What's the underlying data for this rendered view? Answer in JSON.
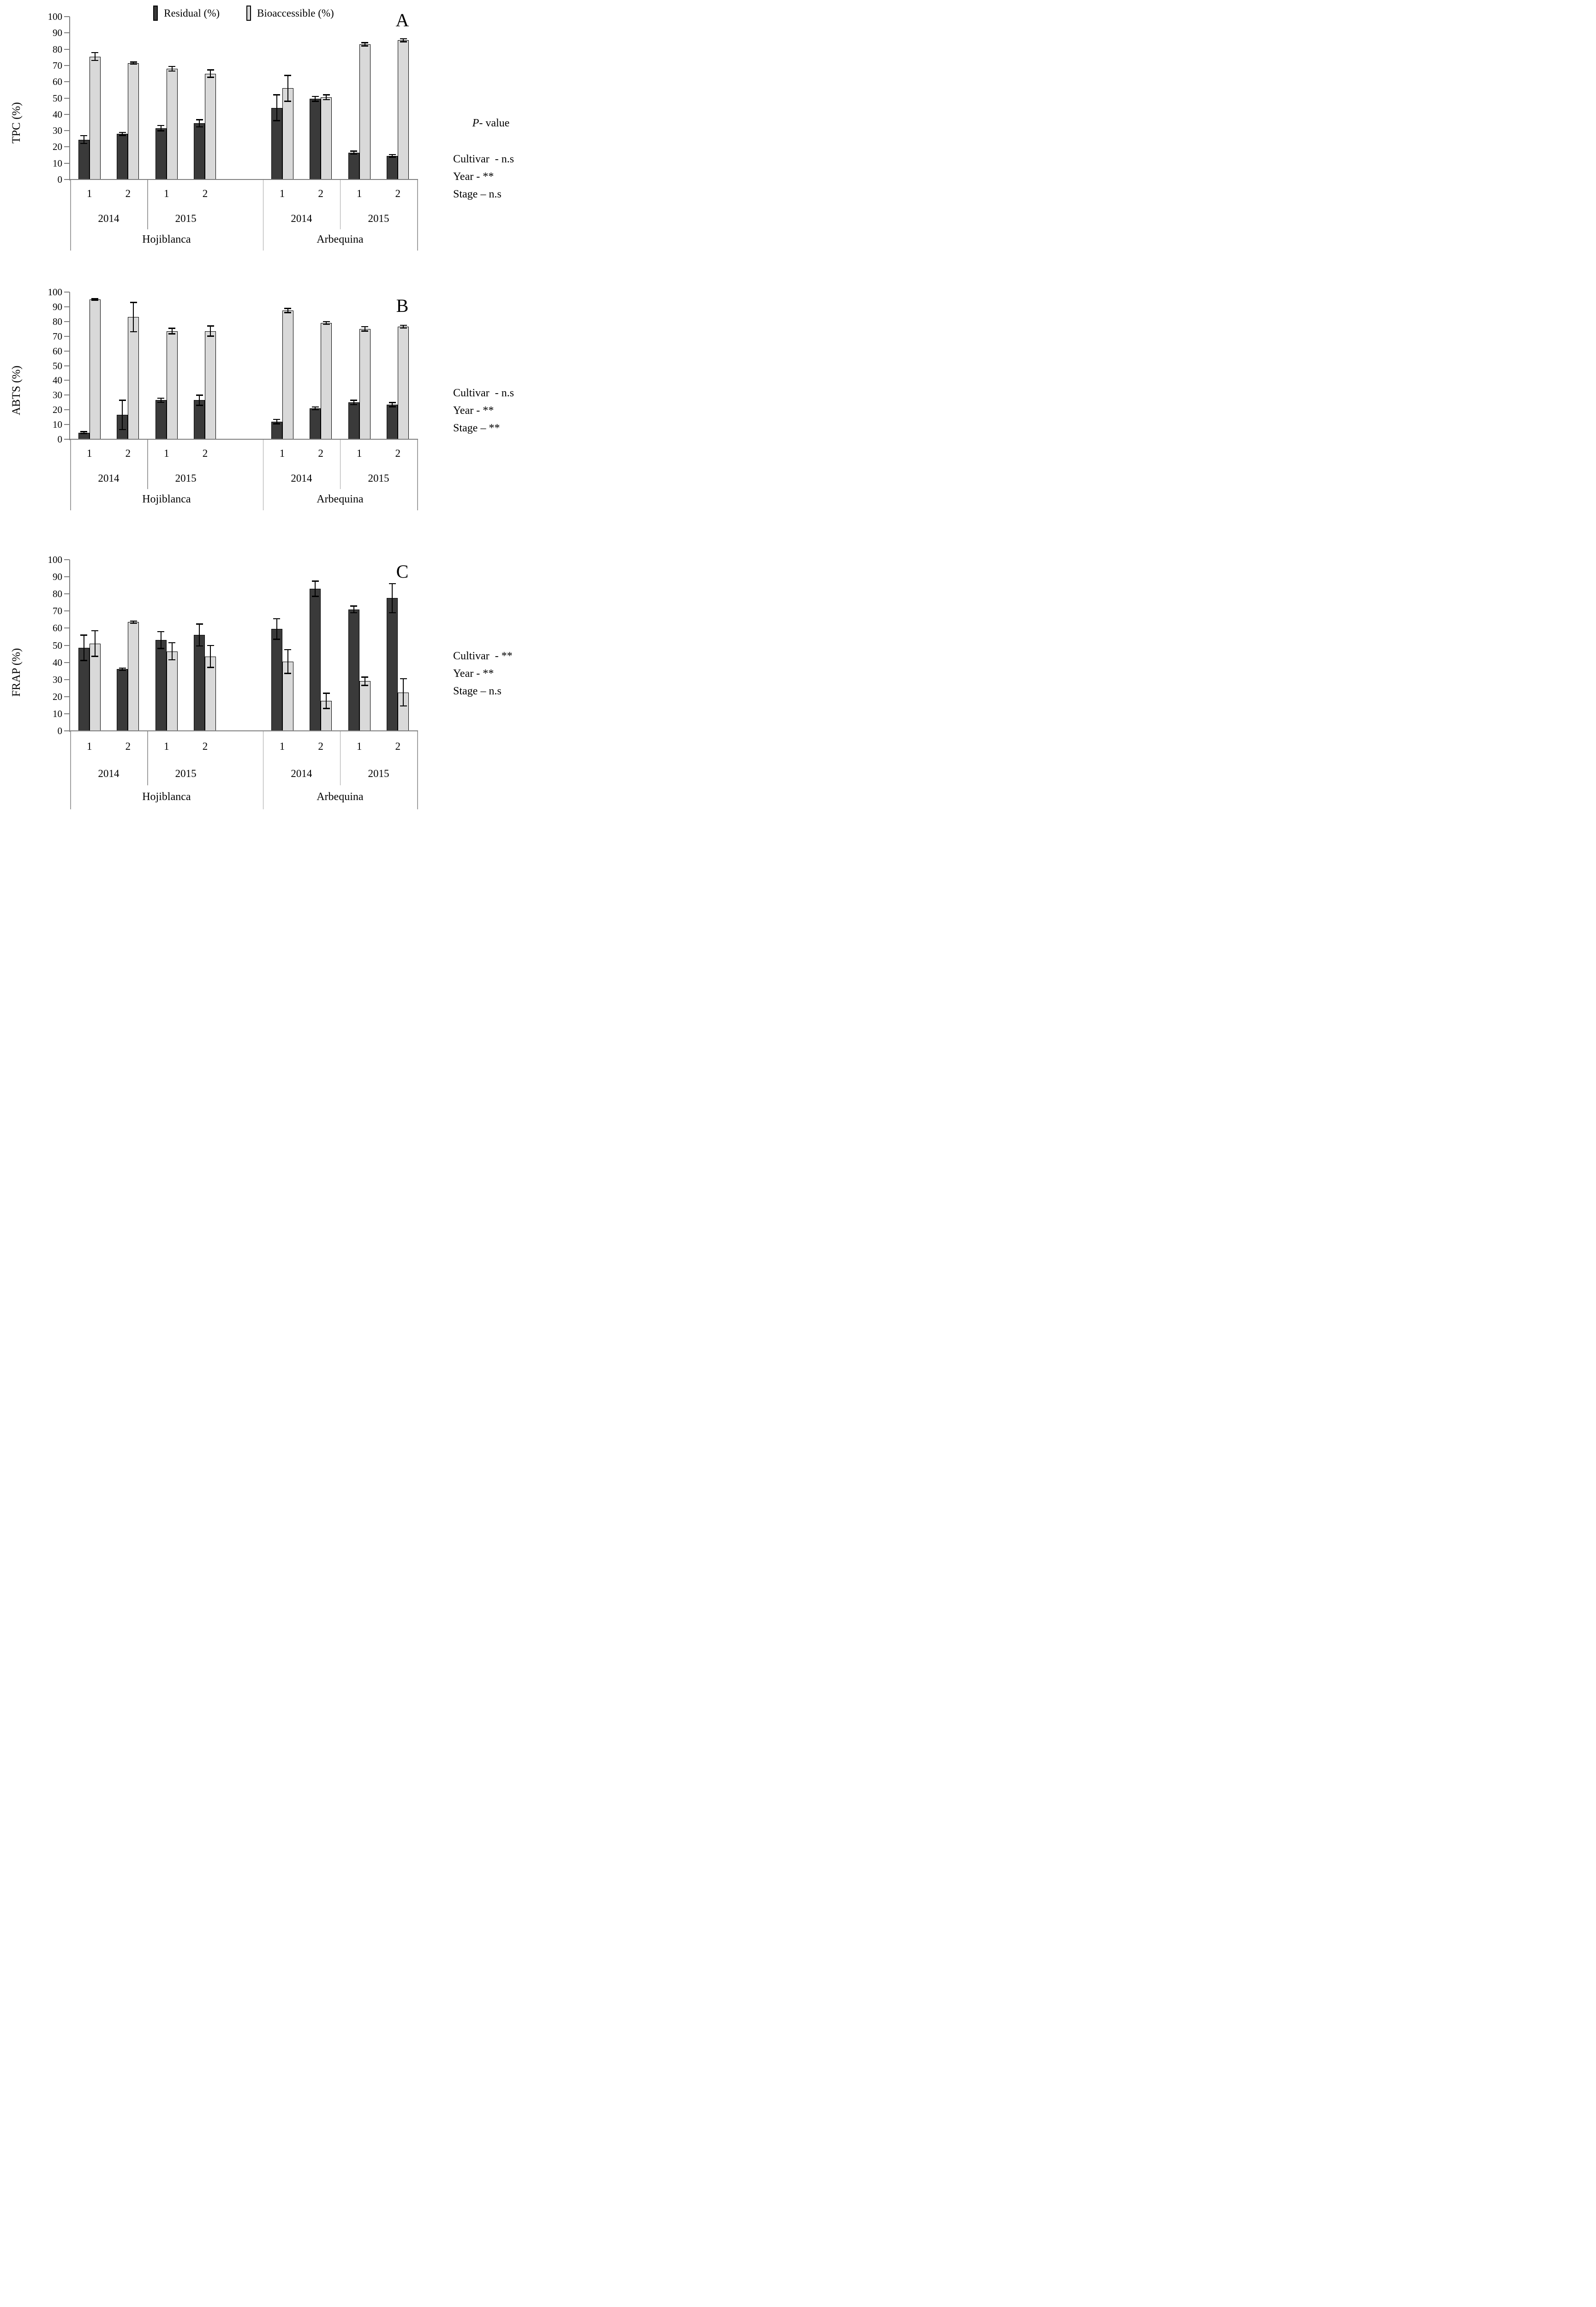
{
  "legend": {
    "residual": "Residual (%)",
    "bioaccessible": "Bioaccessible (%)"
  },
  "colors": {
    "residual_fill": "#3a3a3a",
    "bioaccessible_fill": "#d9d9d9",
    "bar_border": "#000000",
    "axis_line": "#7f7f7f",
    "separator_line": "#a0a0a0",
    "text": "#000000"
  },
  "x_axis": {
    "stages": [
      "1",
      "2",
      "1",
      "2",
      "1",
      "2",
      "1",
      "2"
    ],
    "years": [
      "2014",
      "2015",
      "2014",
      "2015"
    ],
    "cultivars": [
      "Hojiblanca",
      "Arbequina"
    ]
  },
  "chart_data": [
    {
      "panel": "A",
      "type": "bar",
      "ylabel": "TPC (%)",
      "ylim": [
        0,
        100
      ],
      "yticks": [
        0,
        10,
        20,
        30,
        40,
        50,
        60,
        70,
        80,
        90,
        100
      ],
      "categories": [
        "Hojiblanca 2014 1",
        "Hojiblanca 2014 2",
        "Hojiblanca 2015 1",
        "Hojiblanca 2015 2",
        "Arbequina 2014 1",
        "Arbequina 2014 2",
        "Arbequina 2015 1",
        "Arbequina 2015 2"
      ],
      "series": [
        {
          "name": "Residual (%)",
          "values": [
            24.5,
            28,
            31.5,
            34.5,
            44,
            49.5,
            16.5,
            14.5
          ],
          "errors": [
            2.5,
            1,
            1.7,
            2.3,
            8,
            1.5,
            1,
            0.8
          ]
        },
        {
          "name": "Bioaccessible (%)",
          "values": [
            75.5,
            71.5,
            68,
            65,
            56,
            50.5,
            83,
            85.5
          ],
          "errors": [
            2.5,
            0.7,
            1.5,
            2.3,
            8,
            1.5,
            1,
            1
          ]
        }
      ],
      "stats": {
        "header": "P- value",
        "lines": [
          "Cultivar  - n.s",
          "Year - **",
          "Stage – n.s"
        ]
      }
    },
    {
      "panel": "B",
      "type": "bar",
      "ylabel": "ABTS (%)",
      "ylim": [
        0,
        100
      ],
      "yticks": [
        0,
        10,
        20,
        30,
        40,
        50,
        60,
        70,
        80,
        90,
        100
      ],
      "categories": [
        "Hojiblanca 2014 1",
        "Hojiblanca 2014 2",
        "Hojiblanca 2015 1",
        "Hojiblanca 2015 2",
        "Arbequina 2014 1",
        "Arbequina 2014 2",
        "Arbequina 2015 1",
        "Arbequina 2015 2"
      ],
      "series": [
        {
          "name": "Residual (%)",
          "values": [
            4.5,
            16.5,
            26.5,
            26.5,
            12,
            21,
            25,
            23.5
          ],
          "errors": [
            0.7,
            10,
            1.5,
            3.5,
            1.5,
            1,
            1.5,
            1.5
          ]
        },
        {
          "name": "Bioaccessible (%)",
          "values": [
            95,
            83,
            73.5,
            73.5,
            87.5,
            79,
            75,
            76.5
          ],
          "errors": [
            0.5,
            10,
            2,
            3.5,
            1.5,
            1,
            1.5,
            1
          ]
        }
      ],
      "stats": {
        "header": "",
        "lines": [
          "Cultivar  - n.s",
          "Year - **",
          "Stage – **"
        ]
      }
    },
    {
      "panel": "C",
      "type": "bar",
      "ylabel": "FRAP (%)",
      "ylim": [
        0,
        100
      ],
      "yticks": [
        0,
        10,
        20,
        30,
        40,
        50,
        60,
        70,
        80,
        90,
        100
      ],
      "categories": [
        "Hojiblanca 2014 1",
        "Hojiblanca 2014 2",
        "Hojiblanca 2015 1",
        "Hojiblanca 2015 2",
        "Arbequina 2014 1",
        "Arbequina 2014 2",
        "Arbequina 2015 1",
        "Arbequina 2015 2"
      ],
      "series": [
        {
          "name": "Residual (%)",
          "values": [
            48.5,
            36,
            53,
            56,
            59.5,
            83,
            71,
            77.5
          ],
          "errors": [
            7.5,
            0.7,
            5,
            6.5,
            6,
            4.5,
            2,
            8.5
          ]
        },
        {
          "name": "Bioaccessible (%)",
          "values": [
            51,
            63.5,
            46.5,
            43.5,
            40.5,
            17.5,
            29,
            22.5
          ],
          "errors": [
            7.5,
            0.7,
            5,
            6.5,
            7,
            4.5,
            2.5,
            8
          ]
        }
      ],
      "stats": {
        "header": "",
        "lines": [
          "Cultivar  - **",
          "Year - **",
          "Stage – n.s"
        ]
      }
    }
  ]
}
